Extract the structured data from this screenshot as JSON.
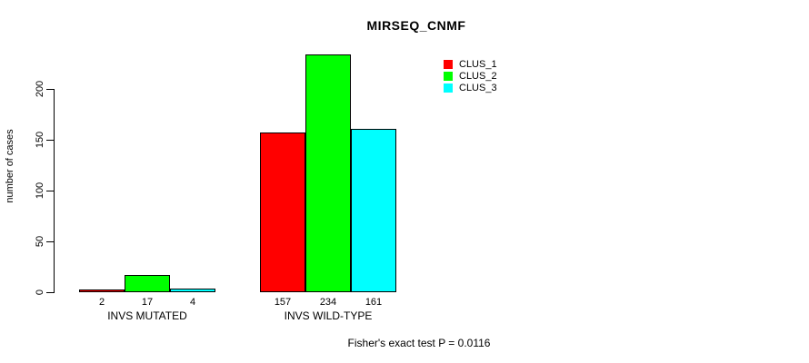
{
  "chart_data": {
    "type": "bar",
    "title": "MIRSEQ_CNMF",
    "ylabel": "number of cases",
    "xlabel": "",
    "categories": [
      "INVS MUTATED",
      "INVS WILD-TYPE"
    ],
    "series": [
      {
        "name": "CLUS_1",
        "color": "#ff0000",
        "values": [
          2,
          157
        ]
      },
      {
        "name": "CLUS_2",
        "color": "#00ff00",
        "values": [
          17,
          234
        ]
      },
      {
        "name": "CLUS_3",
        "color": "#00ffff",
        "values": [
          4,
          161
        ]
      }
    ],
    "ylim": [
      0,
      200
    ],
    "yticks": [
      0,
      50,
      100,
      150,
      200
    ],
    "grid": false,
    "bar_value_labels": [
      [
        "2",
        "17",
        "4"
      ],
      [
        "157",
        "234",
        "161"
      ]
    ],
    "legend_position": "top-right",
    "annotation": "Fisher's exact test P = 0.0116"
  }
}
